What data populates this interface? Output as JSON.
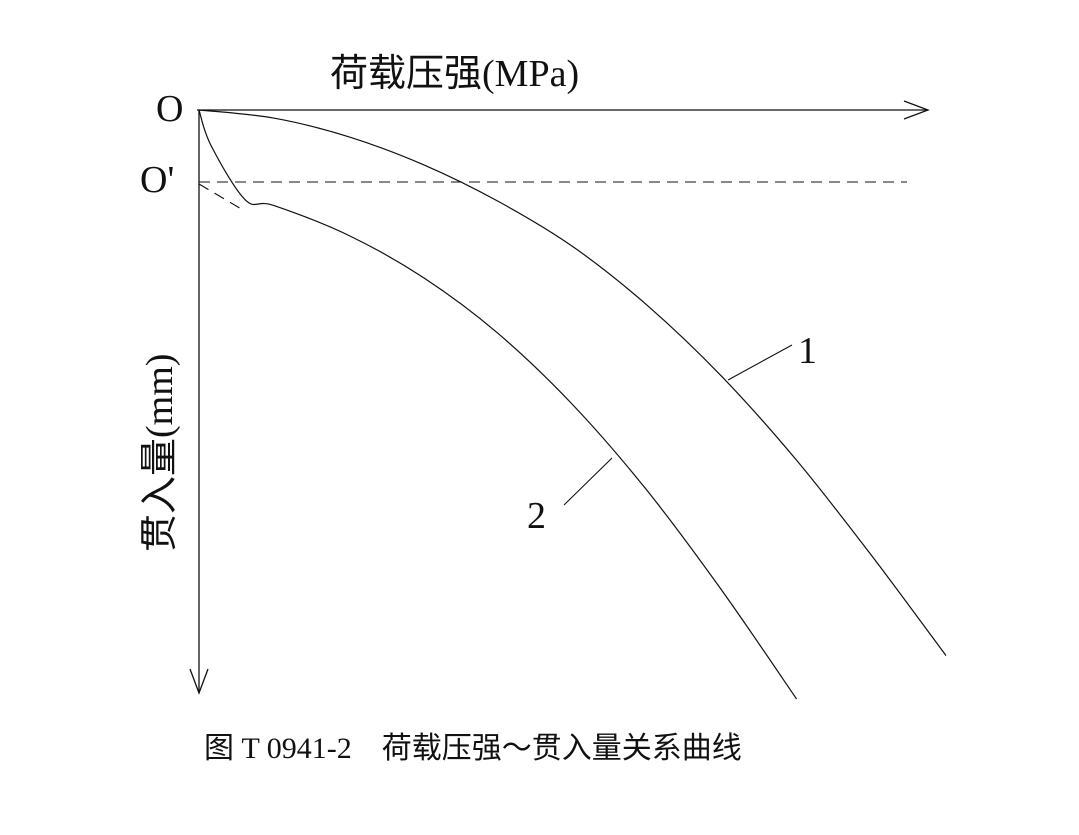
{
  "chart_data": {
    "type": "line",
    "title": "",
    "xlabel": "荷载压强(MPa)",
    "ylabel": "贯入量(mm)",
    "origin_label": "O",
    "corrected_origin_label": "O'",
    "grid": false,
    "legend": "none",
    "series": [
      {
        "name": "1",
        "x": [
          0,
          10,
          20,
          30,
          40,
          50,
          60,
          70,
          80,
          90,
          100
        ],
        "y": [
          0,
          1.3,
          4.3,
          8.8,
          14.7,
          22.0,
          31.5,
          43.0,
          56.5,
          71.8,
          88.0
        ]
      },
      {
        "name": "2",
        "x": [
          0,
          1.6,
          6.2,
          10,
          20,
          30,
          40,
          50,
          60,
          70,
          80
        ],
        "y": [
          0,
          5.7,
          14.5,
          15.4,
          20.2,
          27.0,
          36.0,
          47.5,
          61.4,
          77.5,
          95.0
        ]
      }
    ],
    "annotations": [
      "1",
      "2"
    ]
  },
  "caption": {
    "text": "图 T 0941-2　荷载压强～贯入量关系曲线"
  }
}
